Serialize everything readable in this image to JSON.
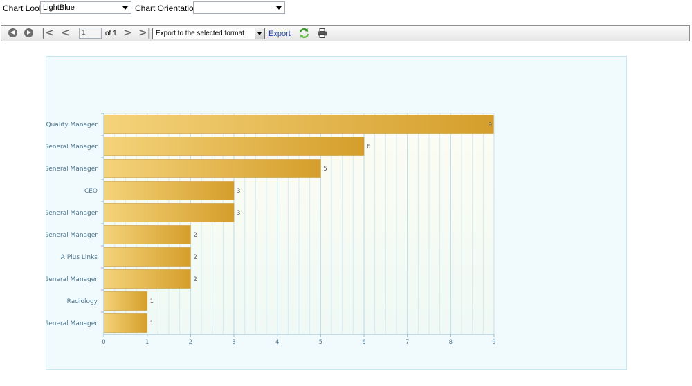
{
  "controls": {
    "chart_look_label": "Chart Look",
    "chart_look_value": "LightBlue",
    "chart_orientation_label": "Chart Orientation",
    "chart_orientation_value": ""
  },
  "toolbar": {
    "page_value": "1",
    "page_of": "of 1",
    "export_format": "Export to the selected format",
    "export_link": "Export",
    "icons": [
      "back-icon",
      "forward-icon",
      "first-page-icon",
      "previous-page-icon",
      "next-page-icon",
      "last-page-icon",
      "refresh-icon",
      "print-icon"
    ]
  },
  "chart_data": {
    "type": "bar",
    "orientation": "horizontal",
    "categories": [
      "Quality Manager",
      "General Manager",
      "General Manager",
      "CEO",
      "General Manager",
      "General Manager",
      "A Plus Links",
      "General Manager",
      "Radiology",
      "General Manager"
    ],
    "values": [
      9,
      6,
      5,
      3,
      3,
      2,
      2,
      2,
      1,
      1
    ],
    "xlim": [
      0,
      9
    ],
    "xticks": [
      0,
      1,
      2,
      3,
      4,
      5,
      6,
      7,
      8,
      9
    ],
    "grid": "vertical",
    "bar_color_start": "#f4d37a",
    "bar_color_end": "#d59e2b"
  }
}
